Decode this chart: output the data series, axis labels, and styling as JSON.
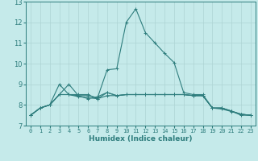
{
  "xlabel": "Humidex (Indice chaleur)",
  "xlim": [
    -0.5,
    23.5
  ],
  "ylim": [
    7,
    13
  ],
  "yticks": [
    7,
    8,
    9,
    10,
    11,
    12,
    13
  ],
  "xticks": [
    0,
    1,
    2,
    3,
    4,
    5,
    6,
    7,
    8,
    9,
    10,
    11,
    12,
    13,
    14,
    15,
    16,
    17,
    18,
    19,
    20,
    21,
    22,
    23
  ],
  "background_color": "#c5eaea",
  "grid_color": "#aed4d4",
  "line_color": "#2e7d7d",
  "series1": [
    7.5,
    7.85,
    8.0,
    8.5,
    8.5,
    8.45,
    8.45,
    8.35,
    9.7,
    9.75,
    12.0,
    12.65,
    11.5,
    11.0,
    10.5,
    10.05,
    8.6,
    8.5,
    8.5,
    7.85,
    7.85,
    7.7,
    7.5,
    7.5
  ],
  "series2": [
    7.5,
    7.85,
    8.0,
    9.0,
    8.5,
    8.5,
    8.5,
    8.3,
    8.45,
    8.45,
    8.5,
    8.5,
    8.5,
    8.5,
    8.5,
    8.5,
    8.5,
    8.45,
    8.45,
    7.85,
    7.85,
    7.7,
    7.55,
    7.5
  ],
  "series3": [
    7.5,
    7.85,
    8.0,
    8.5,
    8.5,
    8.4,
    8.35,
    8.3,
    8.6,
    8.45,
    8.5,
    8.5,
    8.5,
    8.5,
    8.5,
    8.5,
    8.5,
    8.45,
    8.45,
    7.85,
    7.8,
    7.68,
    7.55,
    7.5
  ],
  "series4": [
    7.5,
    7.85,
    8.0,
    8.5,
    9.0,
    8.45,
    8.3,
    8.4,
    8.6,
    8.45,
    8.5,
    8.5,
    8.5,
    8.5,
    8.5,
    8.5,
    8.5,
    8.45,
    8.45,
    7.85,
    7.85,
    7.7,
    7.55,
    7.5
  ],
  "marker_size": 2.5,
  "line_width": 0.8
}
